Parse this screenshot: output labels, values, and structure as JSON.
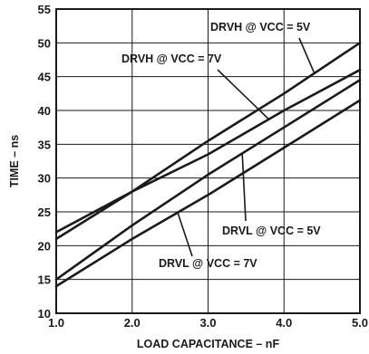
{
  "chart_data": {
    "type": "line",
    "xlabel": "LOAD CAPACITANCE – nF",
    "ylabel": "TIME – ns",
    "xlim": [
      1.0,
      5.0
    ],
    "ylim": [
      10,
      55
    ],
    "x_ticks": [
      "1.0",
      "2.0",
      "3.0",
      "4.0",
      "5.0"
    ],
    "y_ticks": [
      "10",
      "15",
      "20",
      "25",
      "30",
      "35",
      "40",
      "45",
      "50",
      "55"
    ],
    "grid": true,
    "series": [
      {
        "name": "DRVH @ VCC = 5V",
        "x": [
          1.0,
          2.0,
          3.0,
          4.0,
          5.0
        ],
        "y": [
          21,
          28,
          35.5,
          42.5,
          50
        ]
      },
      {
        "name": "DRVH @ VCC = 7V",
        "x": [
          1.0,
          2.0,
          3.0,
          4.0,
          5.0
        ],
        "y": [
          22,
          28,
          33.5,
          40,
          46
        ]
      },
      {
        "name": "DRVL @ VCC = 5V",
        "x": [
          1.0,
          2.0,
          3.0,
          4.0,
          5.0
        ],
        "y": [
          15,
          23,
          30.5,
          37.5,
          44.5
        ]
      },
      {
        "name": "DRVL @ VCC = 7V",
        "x": [
          1.0,
          2.0,
          3.0,
          4.0,
          5.0
        ],
        "y": [
          14,
          21,
          27.5,
          34.5,
          41.5
        ]
      }
    ],
    "annotations": [
      {
        "text": "DRVH @ VCC = 5V",
        "series": 0,
        "anchor_x": 4.4
      },
      {
        "text": "DRVH @ VCC = 7V",
        "series": 1,
        "anchor_x": 3.8
      },
      {
        "text": "DRVL @ VCC = 5V",
        "series": 2,
        "anchor_x": 3.45
      },
      {
        "text": "DRVL @ VCC = 7V",
        "series": 3,
        "anchor_x": 2.6
      }
    ]
  }
}
